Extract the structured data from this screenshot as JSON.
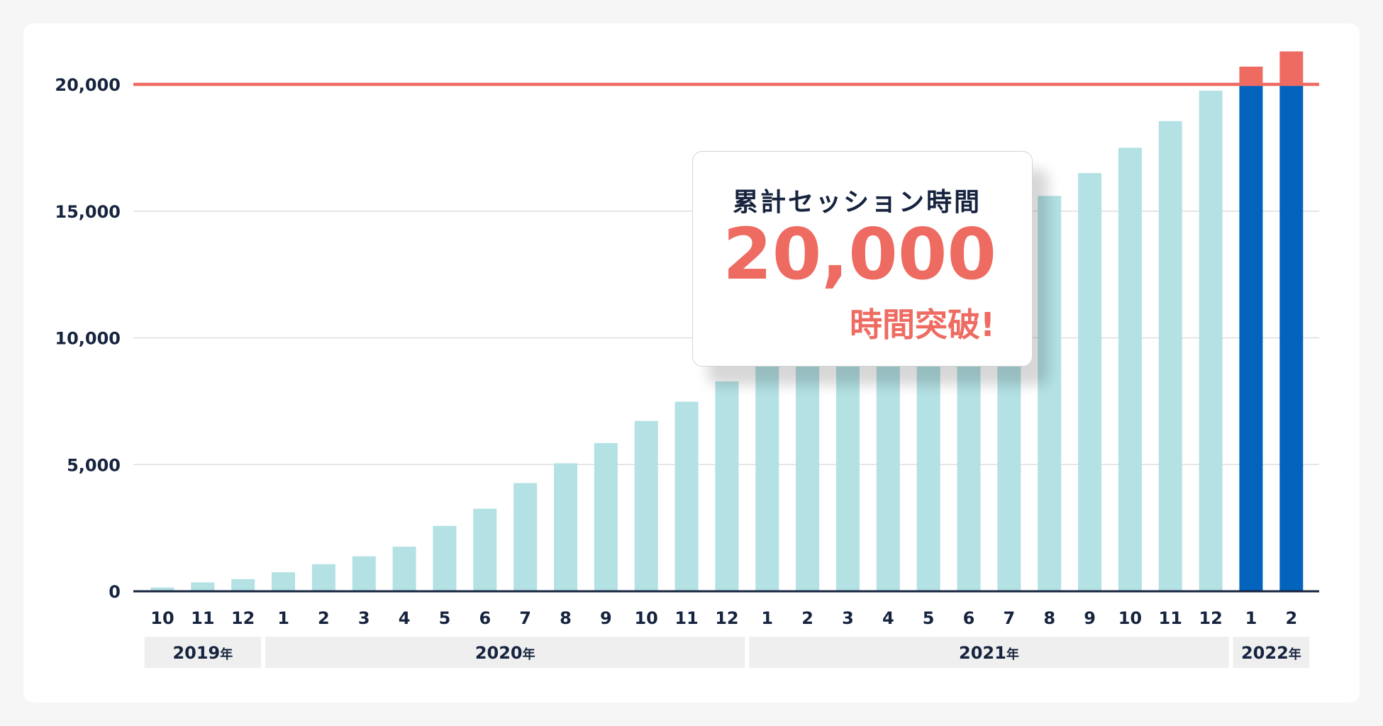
{
  "chart_data": {
    "type": "bar",
    "ylim": [
      0,
      21500
    ],
    "yticks": [
      "0",
      "5,000",
      "10,000",
      "15,000",
      "20,000"
    ],
    "ytick_values": [
      0,
      5000,
      10000,
      15000,
      20000
    ],
    "reference_line": 20000,
    "categories": [
      "10",
      "11",
      "12",
      "1",
      "2",
      "3",
      "4",
      "5",
      "6",
      "7",
      "8",
      "9",
      "10",
      "11",
      "12",
      "1",
      "2",
      "3",
      "4",
      "5",
      "6",
      "7",
      "8",
      "9",
      "10",
      "11",
      "12",
      "1",
      "2"
    ],
    "values": [
      150,
      350,
      480,
      750,
      1070,
      1380,
      1760,
      2580,
      3260,
      4270,
      5050,
      5850,
      6720,
      7480,
      8280,
      9100,
      10150,
      11250,
      11350,
      12300,
      13500,
      14550,
      15600,
      16500,
      17500,
      18550,
      19750,
      20700,
      21300
    ],
    "years": [
      {
        "label": "2019",
        "suffix": "年",
        "count": 3
      },
      {
        "label": "2020",
        "suffix": "年",
        "count": 12
      },
      {
        "label": "2021",
        "suffix": "年",
        "count": 12
      },
      {
        "label": "2022",
        "suffix": "年",
        "count": 2
      }
    ],
    "highlight_last": 2,
    "colors": {
      "bar": "#b3e1e4",
      "highlight_bar": "#0464bd",
      "over_target": "#ee6b62",
      "reference_line": "#ee6b62",
      "grid": "#dedede",
      "axis": "#17243f",
      "text": "#17243f",
      "year_band": "#efefef"
    }
  },
  "callout": {
    "title": "累計セッション時間",
    "value": "20,000",
    "suffix": "時間突破!"
  }
}
